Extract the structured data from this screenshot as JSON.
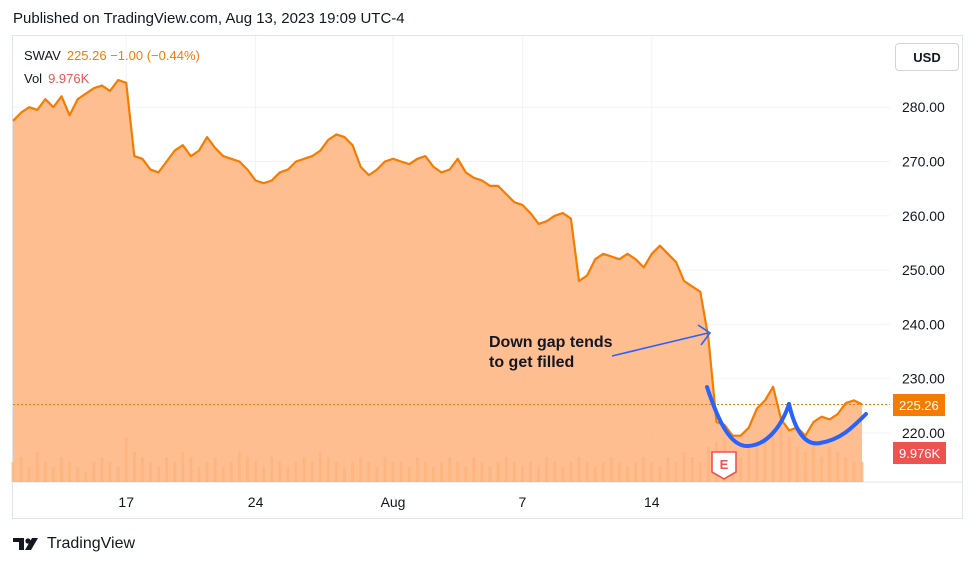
{
  "header": {
    "published": "Published on TradingView.com, Aug 13, 2023 19:09 UTC-4"
  },
  "legend": {
    "symbol": "SWAV",
    "price_change": "225.26 −1.00 (−0.44%)",
    "vol_label": "Vol",
    "vol_value": "9.976K"
  },
  "controls": {
    "currency": "USD"
  },
  "tags": {
    "last_price": "225.26",
    "last_volume": "9.976K"
  },
  "annotation": {
    "line1": "Down gap tends",
    "line2": "to get filled"
  },
  "events": {
    "earnings": "E"
  },
  "footer": {
    "brand": "TradingView"
  },
  "colors": {
    "line": "#f57c00",
    "area": "#ffb37c",
    "volume": "#f7c49a",
    "annotation": "#2962ff",
    "vol_tag": "#ef5350"
  },
  "chart_data": {
    "type": "area",
    "symbol": "SWAV",
    "x_ticks": [
      "17",
      "24",
      "Aug",
      "7",
      "14"
    ],
    "y_ticks": [
      "220.00",
      "230.00",
      "240.00",
      "250.00",
      "260.00",
      "270.00",
      "280.00"
    ],
    "ylim": [
      212,
      294
    ],
    "x_index_ticks": [
      14,
      30,
      47,
      63,
      79
    ],
    "last_price_line": 225.26,
    "series": [
      {
        "values": [
          277.5,
          279,
          280,
          279.5,
          281.5,
          280,
          282,
          278.5,
          281.5,
          282.5,
          283.5,
          284,
          283,
          285,
          284.5,
          271,
          270.5,
          268.5,
          268,
          270,
          272,
          273,
          271,
          272,
          274.5,
          272.5,
          271,
          270.5,
          270,
          268.5,
          266.5,
          266,
          266.5,
          268,
          268.5,
          270,
          270.5,
          271,
          272,
          274,
          275,
          274.5,
          273,
          269,
          267.5,
          268.5,
          270,
          270.5,
          270,
          269.5,
          270.5,
          271,
          269,
          268,
          268.5,
          270.5,
          268,
          267,
          266.5,
          265.5,
          265.5,
          264,
          262.5,
          262,
          260.5,
          258.5,
          259,
          260,
          260.5,
          259.5,
          248,
          249,
          252,
          253,
          252.5,
          252,
          253,
          252,
          250.5,
          253,
          254.5,
          253,
          251.5,
          248,
          247,
          246,
          237.5,
          222,
          221.5,
          219.5,
          219.5,
          221,
          224.5,
          226,
          228.5,
          222.5,
          220.5,
          221,
          219.5,
          222,
          223,
          222.5,
          223.5,
          225.5,
          226,
          225.26
        ]
      }
    ],
    "volume": [
      4,
      5,
      3,
      6,
      4,
      3,
      5,
      4,
      3,
      2,
      4,
      5,
      4,
      3,
      9,
      6,
      5,
      4,
      3,
      5,
      4,
      6,
      5,
      3,
      4,
      5,
      3,
      4,
      6,
      5,
      4,
      3,
      5,
      4,
      3,
      4,
      5,
      4,
      6,
      5,
      4,
      3,
      4,
      5,
      4,
      3,
      5,
      4,
      4,
      3,
      5,
      4,
      3,
      4,
      5,
      4,
      3,
      5,
      4,
      3,
      4,
      5,
      4,
      3,
      4,
      3,
      5,
      4,
      3,
      4,
      5,
      4,
      3,
      4,
      5,
      4,
      3,
      4,
      5,
      4,
      3,
      5,
      4,
      6,
      5,
      4,
      7,
      8,
      9,
      6,
      5,
      7,
      8,
      9,
      10,
      11,
      9,
      7,
      6,
      8,
      5,
      7,
      6,
      5,
      4,
      4
    ]
  }
}
